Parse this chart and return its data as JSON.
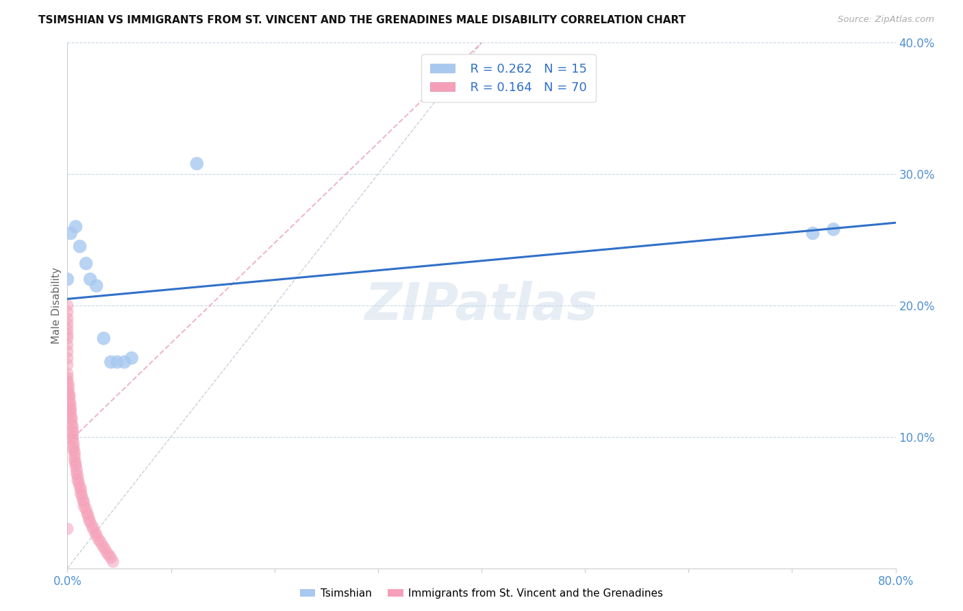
{
  "title": "TSIMSHIAN VS IMMIGRANTS FROM ST. VINCENT AND THE GRENADINES MALE DISABILITY CORRELATION CHART",
  "source": "Source: ZipAtlas.com",
  "ylabel": "Male Disability",
  "xlim": [
    0.0,
    0.8
  ],
  "ylim": [
    0.0,
    0.4
  ],
  "blue_R": "0.262",
  "blue_N": "15",
  "pink_R": "0.164",
  "pink_N": "70",
  "blue_color": "#a8c8f0",
  "pink_color": "#f5a0b8",
  "line_blue_color": "#3070c8",
  "line_pink_color": "#e07090",
  "grid_color": "#c8d8e8",
  "watermark": "ZIPatlas",
  "tsimshian_x": [
    0.003,
    0.008,
    0.012,
    0.018,
    0.022,
    0.028,
    0.035,
    0.042,
    0.048,
    0.055,
    0.062,
    0.125,
    0.72,
    0.74,
    0.0
  ],
  "tsimshian_y": [
    0.255,
    0.26,
    0.245,
    0.232,
    0.22,
    0.215,
    0.175,
    0.157,
    0.157,
    0.157,
    0.16,
    0.308,
    0.255,
    0.258,
    0.22
  ],
  "svg_x": [
    0.0,
    0.0,
    0.0,
    0.0,
    0.0,
    0.0,
    0.0,
    0.0,
    0.0,
    0.0,
    0.0,
    0.0,
    0.0,
    0.0,
    0.001,
    0.001,
    0.001,
    0.002,
    0.002,
    0.002,
    0.003,
    0.003,
    0.003,
    0.003,
    0.004,
    0.004,
    0.004,
    0.005,
    0.005,
    0.005,
    0.005,
    0.005,
    0.006,
    0.006,
    0.006,
    0.007,
    0.007,
    0.007,
    0.008,
    0.008,
    0.009,
    0.009,
    0.01,
    0.01,
    0.011,
    0.012,
    0.013,
    0.013,
    0.014,
    0.015,
    0.016,
    0.016,
    0.018,
    0.019,
    0.02,
    0.021,
    0.022,
    0.024,
    0.025,
    0.027,
    0.028,
    0.03,
    0.032,
    0.034,
    0.036,
    0.038,
    0.04,
    0.042,
    0.044,
    0.0
  ],
  "svg_y": [
    0.155,
    0.16,
    0.165,
    0.17,
    0.175,
    0.178,
    0.182,
    0.186,
    0.19,
    0.195,
    0.2,
    0.148,
    0.145,
    0.142,
    0.14,
    0.137,
    0.134,
    0.132,
    0.13,
    0.127,
    0.125,
    0.122,
    0.12,
    0.118,
    0.115,
    0.113,
    0.11,
    0.108,
    0.105,
    0.103,
    0.1,
    0.098,
    0.095,
    0.092,
    0.09,
    0.088,
    0.085,
    0.082,
    0.08,
    0.078,
    0.075,
    0.072,
    0.07,
    0.067,
    0.065,
    0.062,
    0.06,
    0.057,
    0.055,
    0.052,
    0.05,
    0.047,
    0.045,
    0.042,
    0.04,
    0.037,
    0.035,
    0.032,
    0.03,
    0.027,
    0.025,
    0.022,
    0.02,
    0.017,
    0.015,
    0.012,
    0.01,
    0.008,
    0.005,
    0.03
  ],
  "blue_line_x": [
    0.0,
    0.8
  ],
  "blue_line_y": [
    0.205,
    0.263
  ],
  "pink_line_x": [
    0.0,
    0.4
  ],
  "pink_line_y": [
    0.095,
    0.4
  ],
  "diag_line_x": [
    0.0,
    0.4
  ],
  "diag_line_y": [
    0.0,
    0.4
  ]
}
